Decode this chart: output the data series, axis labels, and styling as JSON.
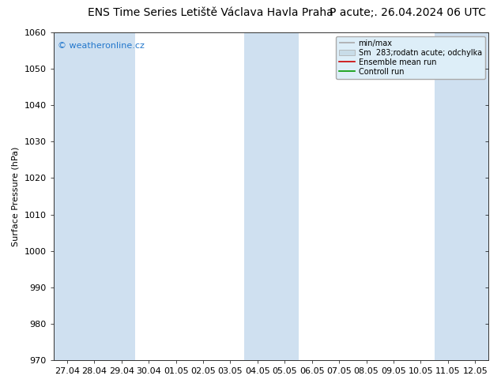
{
  "title_left": "ENS Time Series Letiště Václava Havla Praha",
  "title_right": "P acute;. 26.04.2024 06 UTC",
  "ylabel": "Surface Pressure (hPa)",
  "ylim": [
    970,
    1060
  ],
  "yticks": [
    970,
    980,
    990,
    1000,
    1010,
    1020,
    1030,
    1040,
    1050,
    1060
  ],
  "x_labels": [
    "27.04",
    "28.04",
    "29.04",
    "30.04",
    "01.05",
    "02.05",
    "03.05",
    "04.05",
    "05.05",
    "06.05",
    "07.05",
    "08.05",
    "09.05",
    "10.05",
    "11.05",
    "12.05"
  ],
  "shaded_indices": [
    0,
    1,
    2,
    7,
    8,
    14,
    15
  ],
  "shade_color": "#cfe0f0",
  "background_color": "#ffffff",
  "plot_bg_color": "#ffffff",
  "watermark": "© weatheronline.cz",
  "watermark_color": "#2277cc",
  "legend_label1": "min/max",
  "legend_label2": "Sm  283;rodatn acute; odchylka",
  "legend_label3": "Ensemble mean run",
  "legend_label4": "Controll run",
  "legend_color1": "#aaaaaa",
  "legend_color2": "#c8dce8",
  "legend_color3": "#cc0000",
  "legend_color4": "#009900",
  "title_fontsize": 10,
  "tick_fontsize": 8,
  "ylabel_fontsize": 8
}
